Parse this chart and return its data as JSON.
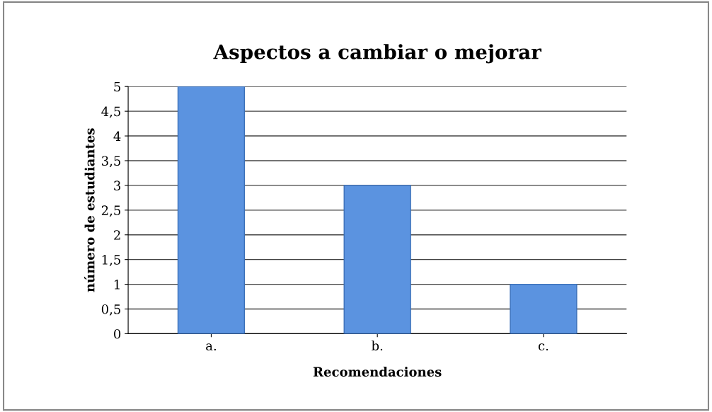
{
  "chart_data": {
    "type": "bar",
    "title": "Aspectos a cambiar o mejorar",
    "xlabel": "Recomendaciones",
    "ylabel": "número de estudiantes",
    "categories": [
      "a.",
      "b.",
      "c."
    ],
    "values": [
      5,
      3,
      1
    ],
    "color": "#5b93e0",
    "ylim": [
      0,
      5
    ],
    "yticks": [
      0,
      {
        "value": 0.5,
        "label": "0,5"
      },
      1,
      {
        "value": 1.5,
        "label": "1,5"
      },
      2,
      {
        "value": 2.5,
        "label": "2,5"
      },
      3,
      {
        "value": 3.5,
        "label": "3,5"
      },
      4,
      {
        "value": 4.5,
        "label": "4,5"
      },
      5
    ],
    "grid": "y"
  }
}
